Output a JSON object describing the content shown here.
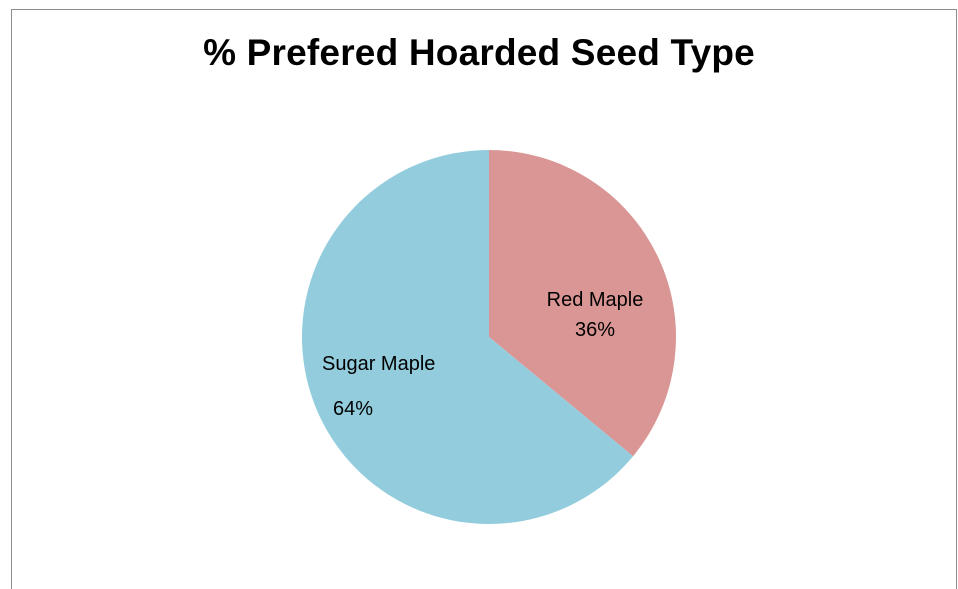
{
  "chart_data": {
    "type": "pie",
    "title": "% Prefered Hoarded Seed Type",
    "slices": [
      {
        "name": "Red Maple",
        "value": 36,
        "label": "36%",
        "color": "#d99694"
      },
      {
        "name": "Sugar Maple",
        "value": 64,
        "label": "64%",
        "color": "#93cddd"
      }
    ],
    "start_angle_deg": 0,
    "direction": "clockwise",
    "legend": "none"
  }
}
